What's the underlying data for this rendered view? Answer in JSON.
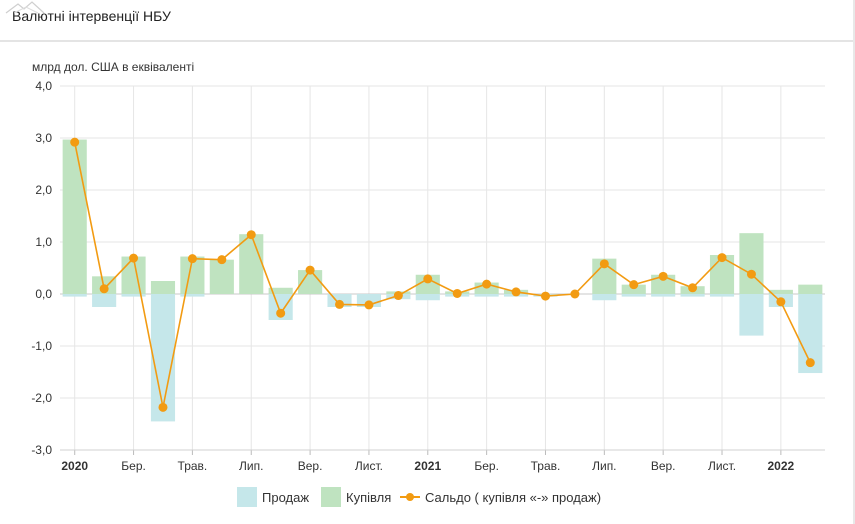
{
  "page": {
    "title": "Валютні інтервенції НБУ"
  },
  "chart_data": {
    "type": "bar",
    "title": "",
    "ylabel": "млрд дол. США в еквіваленті",
    "ylim": [
      -3,
      4
    ],
    "yticks": [
      "4,0",
      "3,0",
      "2,0",
      "1,0",
      "0,0",
      "-1,0",
      "-2,0",
      "-3,0"
    ],
    "ytick_values": [
      4,
      3,
      2,
      1,
      0,
      -1,
      -2,
      -3
    ],
    "grid": true,
    "legend_position": "bottom",
    "x_tick_labels": [
      {
        "index": 0.5,
        "label": "2020",
        "bold": true
      },
      {
        "index": 2.5,
        "label": "Бер.",
        "bold": false
      },
      {
        "index": 4.5,
        "label": "Трав.",
        "bold": false
      },
      {
        "index": 6.5,
        "label": "Лип.",
        "bold": false
      },
      {
        "index": 8.5,
        "label": "Вер.",
        "bold": false
      },
      {
        "index": 10.5,
        "label": "Лист.",
        "bold": false
      },
      {
        "index": 12.5,
        "label": "2021",
        "bold": true
      },
      {
        "index": 14.5,
        "label": "Бер.",
        "bold": false
      },
      {
        "index": 16.5,
        "label": "Трав.",
        "bold": false
      },
      {
        "index": 18.5,
        "label": "Лип.",
        "bold": false
      },
      {
        "index": 20.5,
        "label": "Вер.",
        "bold": false
      },
      {
        "index": 22.5,
        "label": "Лист.",
        "bold": false
      },
      {
        "index": 24.5,
        "label": "2022",
        "bold": true
      }
    ],
    "series": [
      {
        "name": "Продаж",
        "kind": "bar",
        "color": "#c5e7ea",
        "values": [
          -0.05,
          -0.25,
          -0.05,
          -2.45,
          -0.05,
          0,
          0,
          -0.5,
          0,
          -0.25,
          -0.25,
          -0.1,
          -0.12,
          -0.05,
          -0.05,
          -0.05,
          -0.05,
          0,
          -0.12,
          -0.05,
          -0.05,
          -0.05,
          -0.05,
          -0.8,
          -0.25,
          -1.52
        ]
      },
      {
        "name": "Купівля",
        "kind": "bar",
        "color": "#bfe3c0",
        "values": [
          2.97,
          0.34,
          0.72,
          0.25,
          0.72,
          0.66,
          1.15,
          0.12,
          0.46,
          0,
          0,
          0.05,
          0.37,
          0.05,
          0.22,
          0.08,
          0,
          0,
          0.68,
          0.18,
          0.37,
          0.15,
          0.75,
          1.17,
          0.08,
          0.18
        ]
      },
      {
        "name": "Сальдо ( купівля «-» продаж)",
        "kind": "line",
        "color": "#f29b12",
        "values": [
          2.92,
          0.1,
          0.69,
          -2.18,
          0.68,
          0.66,
          1.14,
          -0.37,
          0.46,
          -0.2,
          -0.21,
          -0.03,
          0.29,
          0.01,
          0.19,
          0.04,
          -0.04,
          0.0,
          0.58,
          0.18,
          0.34,
          0.12,
          0.7,
          0.38,
          -0.15,
          -1.32
        ]
      }
    ]
  }
}
